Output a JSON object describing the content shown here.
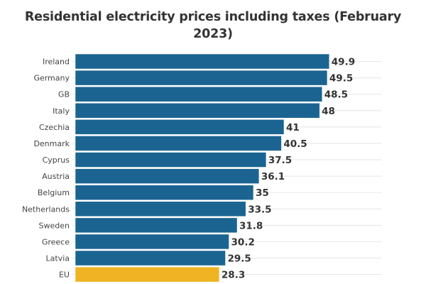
{
  "chart_data": {
    "type": "bar",
    "orientation": "horizontal",
    "title": "Residential electricity prices including taxes (February 2023)",
    "xlabel": "",
    "ylabel": "",
    "xlim": [
      0,
      50
    ],
    "grid": true,
    "categories": [
      "Ireland",
      "Germany",
      "GB",
      "Italy",
      "Czechia",
      "Denmark",
      "Cyprus",
      "Austria",
      "Belgium",
      "Netherlands",
      "Sweden",
      "Greece",
      "Latvia",
      "EU"
    ],
    "values": [
      49.9,
      49.5,
      48.5,
      48,
      41,
      40.5,
      37.5,
      36.1,
      35,
      33.5,
      31.8,
      30.2,
      29.5,
      28.3
    ],
    "value_labels": [
      "49.9",
      "49.5",
      "48.5",
      "48",
      "41",
      "40.5",
      "37.5",
      "36.1",
      "35",
      "33.5",
      "31.8",
      "30.2",
      "29.5",
      "28.3"
    ],
    "colors": {
      "default": "#1b6491",
      "highlight": "#f0b323",
      "highlight_category": "EU"
    }
  }
}
